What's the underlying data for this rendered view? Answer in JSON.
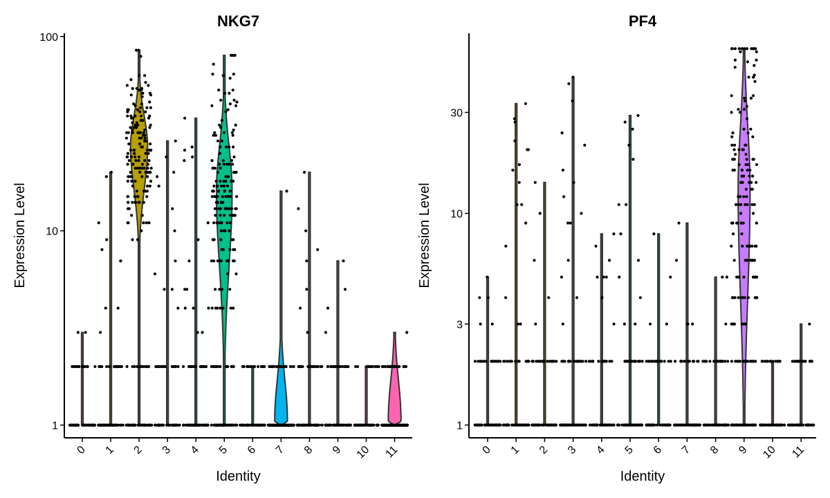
{
  "chart_data": [
    {
      "type": "violin",
      "title": "NKG7",
      "xlabel": "Identity",
      "ylabel": "Expression Level",
      "y_scale": "log",
      "ylim": [
        0.86,
        104
      ],
      "y_ticks": [
        {
          "value": 1,
          "label": "1"
        },
        {
          "value": 10,
          "label": "10"
        },
        {
          "value": 100,
          "label": "100"
        }
      ],
      "categories": [
        "0",
        "1",
        "2",
        "3",
        "4",
        "5",
        "6",
        "7",
        "8",
        "9",
        "10",
        "11"
      ],
      "groups": [
        {
          "identity": "0",
          "color": "#F8766D",
          "max": 3,
          "body": null
        },
        {
          "identity": "1",
          "color": "#DE8C00",
          "max": 20,
          "body": null
        },
        {
          "identity": "2",
          "color": "#B79F00",
          "max": 85,
          "body": {
            "min": 9,
            "max": 60,
            "mode": 27,
            "width": 0.6
          }
        },
        {
          "identity": "3",
          "color": "#7CAE00",
          "max": 29,
          "body": null
        },
        {
          "identity": "4",
          "color": "#00BA38",
          "max": 38,
          "body": null
        },
        {
          "identity": "5",
          "color": "#00C08B",
          "max": 80,
          "body": {
            "min": 2.2,
            "max": 52,
            "mode": 16,
            "width": 0.55
          }
        },
        {
          "identity": "6",
          "color": "#00BFC4",
          "max": 2,
          "body": null
        },
        {
          "identity": "7",
          "color": "#00B4F0",
          "max": 16,
          "body": {
            "min": 1,
            "max": 3,
            "mode": 1.05,
            "width": 0.45
          }
        },
        {
          "identity": "8",
          "color": "#619CFF",
          "max": 20,
          "body": null
        },
        {
          "identity": "9",
          "color": "#C77CFF",
          "max": 7,
          "body": null
        },
        {
          "identity": "10",
          "color": "#F564E3",
          "max": 2,
          "body": null
        },
        {
          "identity": "11",
          "color": "#FF64B0",
          "max": 3,
          "body": {
            "min": 1,
            "max": 3,
            "mode": 1.05,
            "width": 0.45
          }
        }
      ]
    },
    {
      "type": "violin",
      "title": "PF4",
      "xlabel": "Identity",
      "ylabel": "Expression Level",
      "y_scale": "log",
      "ylim": [
        0.87,
        71
      ],
      "y_ticks": [
        {
          "value": 1,
          "label": "1"
        },
        {
          "value": 3,
          "label": "3"
        },
        {
          "value": 10,
          "label": "10"
        },
        {
          "value": 30,
          "label": "30"
        }
      ],
      "categories": [
        "0",
        "1",
        "2",
        "3",
        "4",
        "5",
        "6",
        "7",
        "8",
        "9",
        "10",
        "11"
      ],
      "groups": [
        {
          "identity": "0",
          "color": "#F8766D",
          "max": 5,
          "body": null
        },
        {
          "identity": "1",
          "color": "#DE8C00",
          "max": 33,
          "body": null
        },
        {
          "identity": "2",
          "color": "#B79F00",
          "max": 14,
          "body": null
        },
        {
          "identity": "3",
          "color": "#7CAE00",
          "max": 44,
          "body": null
        },
        {
          "identity": "4",
          "color": "#00BA38",
          "max": 8,
          "body": null
        },
        {
          "identity": "5",
          "color": "#00C08B",
          "max": 29,
          "body": null
        },
        {
          "identity": "6",
          "color": "#00BFC4",
          "max": 8,
          "body": null
        },
        {
          "identity": "7",
          "color": "#00B4F0",
          "max": 9,
          "body": null
        },
        {
          "identity": "8",
          "color": "#619CFF",
          "max": 5,
          "body": null
        },
        {
          "identity": "9",
          "color": "#C77CFF",
          "max": 60,
          "body": {
            "min": 1,
            "max": 60,
            "mode": 13,
            "width": 0.42
          }
        },
        {
          "identity": "10",
          "color": "#F564E3",
          "max": 2,
          "body": null
        },
        {
          "identity": "11",
          "color": "#FF64B0",
          "max": 3,
          "body": null
        }
      ]
    }
  ]
}
